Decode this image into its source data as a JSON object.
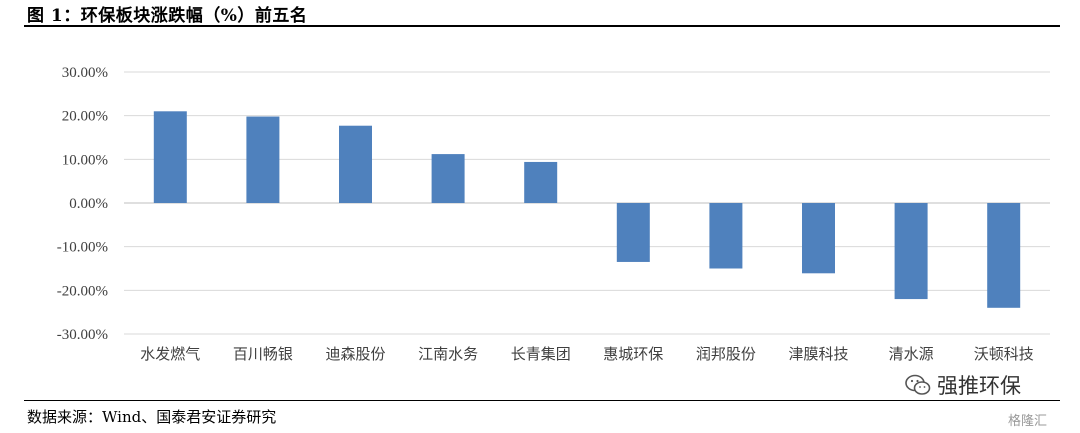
{
  "figure": {
    "title": "图 1：环保板块涨跌幅（%）前五名",
    "source": "数据来源：Wind、国泰君安证券研究"
  },
  "watermark": {
    "text": "强推环保",
    "icon": "wechat-icon",
    "corner_text": "格隆汇"
  },
  "chart_data": {
    "type": "bar",
    "categories": [
      "水发燃气",
      "百川畅银",
      "迪森股份",
      "江南水务",
      "长青集团",
      "惠城环保",
      "润邦股份",
      "津膜科技",
      "清水源",
      "沃顿科技"
    ],
    "values": [
      21.0,
      19.8,
      17.7,
      11.2,
      9.4,
      -13.5,
      -15.0,
      -16.1,
      -22.0,
      -24.0
    ],
    "ylim": [
      -30,
      30
    ],
    "yticks": [
      30,
      20,
      10,
      0,
      -10,
      -20,
      -30
    ],
    "ytick_labels": [
      "30.00%",
      "20.00%",
      "10.00%",
      "0.00%",
      "-10.00%",
      "-20.00%",
      "-30.00%"
    ],
    "grid": true,
    "bar_color": "#4f81bd",
    "grid_color": "#d9d9d9"
  }
}
